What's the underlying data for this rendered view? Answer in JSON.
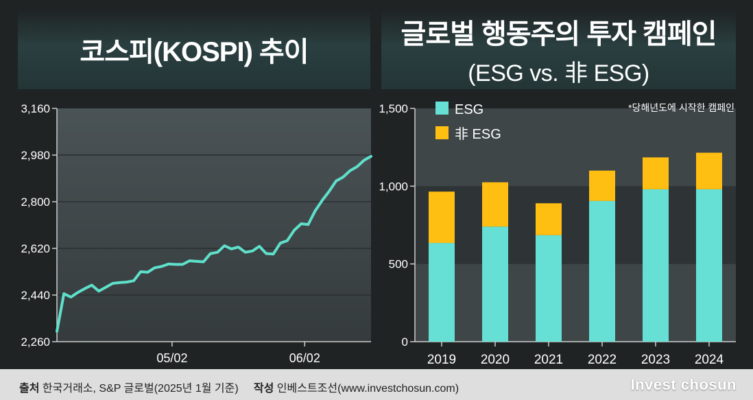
{
  "left_title": "코스피(KOSPI) 추이",
  "right_title_line1": "글로벌 행동주의 투자 캠페인",
  "right_title_line2": "(ESG vs. 非 ESG)",
  "footer": {
    "source_label": "출처",
    "source_text": "한국거래소,  S&P 글로벌(2025년 1월 기준)",
    "author_label": "작성",
    "author_text": "인베스트조선(www.investchosun.com)",
    "logo": "Invest chosun"
  },
  "colors": {
    "line": "#5fe0cb",
    "esg": "#66e0d5",
    "non_esg": "#ffbe12"
  },
  "chart_data": [
    {
      "type": "line",
      "title": "코스피(KOSPI) 추이",
      "ylim": [
        2260,
        3160
      ],
      "yticks": [
        2260,
        2440,
        2620,
        2800,
        2980,
        3160
      ],
      "ytick_labels": [
        "2,260",
        "2,440",
        "2,620",
        "2,800",
        "2,980",
        "3,160"
      ],
      "xlim": [
        0,
        90
      ],
      "xticks": [
        33,
        71
      ],
      "xtick_labels": [
        "05/02",
        "06/02"
      ],
      "grid": true,
      "series": [
        {
          "x": [
            0,
            2,
            4,
            6,
            8,
            10,
            12,
            14,
            16,
            18,
            20,
            22,
            24,
            26,
            28,
            30,
            32,
            34,
            36,
            38,
            40,
            42,
            44,
            46,
            48,
            50,
            52,
            54,
            56,
            58,
            60,
            62,
            64,
            66,
            68,
            70,
            72,
            74,
            76,
            78,
            80,
            82,
            84,
            86,
            88,
            90
          ],
          "y": [
            2300,
            2445,
            2432,
            2450,
            2465,
            2478,
            2455,
            2470,
            2485,
            2488,
            2490,
            2495,
            2530,
            2528,
            2545,
            2550,
            2560,
            2558,
            2558,
            2572,
            2570,
            2568,
            2600,
            2605,
            2630,
            2618,
            2625,
            2605,
            2610,
            2628,
            2600,
            2598,
            2640,
            2650,
            2690,
            2715,
            2712,
            2765,
            2805,
            2840,
            2880,
            2895,
            2920,
            2935,
            2960,
            2975
          ]
        }
      ]
    },
    {
      "type": "bar",
      "stacked": true,
      "categories": [
        "2019",
        "2020",
        "2021",
        "2022",
        "2023",
        "2024"
      ],
      "series": [
        {
          "name": "ESG",
          "values": [
            635,
            740,
            685,
            905,
            980,
            980
          ]
        },
        {
          "name": "非 ESG",
          "values": [
            330,
            285,
            205,
            195,
            205,
            235
          ]
        }
      ],
      "ylim": [
        0,
        1500
      ],
      "yticks": [
        0,
        500,
        1000,
        1500
      ],
      "ytick_labels": [
        "0",
        "500",
        "1,000",
        "1,500"
      ],
      "legend": "top-left",
      "note": "*당해년도에 시작한 캠페인",
      "grid": true
    }
  ]
}
